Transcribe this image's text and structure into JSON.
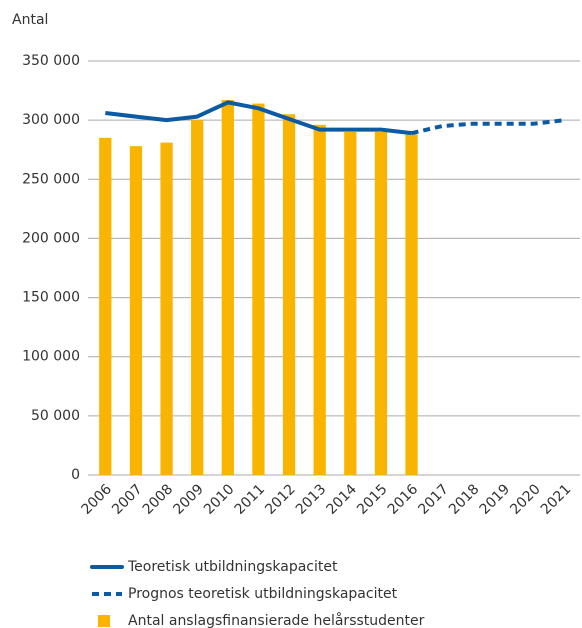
{
  "chart_data": {
    "type": "bar",
    "y_label": "Antal",
    "categories": [
      "2006",
      "2007",
      "2008",
      "2009",
      "2010",
      "2011",
      "2012",
      "2013",
      "2014",
      "2015",
      "2016",
      "2017",
      "2018",
      "2019",
      "2020",
      "2021"
    ],
    "series": [
      {
        "name": "Teoretisk utbildningskapacitet",
        "type": "line",
        "dashed": false,
        "color": "#0b5aa2",
        "values": [
          306000,
          303000,
          300000,
          303000,
          315000,
          310000,
          301000,
          292000,
          292000,
          292000,
          289000,
          null,
          null,
          null,
          null,
          null
        ]
      },
      {
        "name": "Prognos teoretisk utbildningskapacitet",
        "type": "line",
        "dashed": true,
        "color": "#0b5aa2",
        "values": [
          null,
          null,
          null,
          null,
          null,
          null,
          null,
          null,
          null,
          null,
          289000,
          295000,
          297000,
          297000,
          297000,
          300000
        ]
      },
      {
        "name": "Antal anslagsfinansierade helårsstudenter",
        "type": "bar",
        "color": "#f8b400",
        "values": [
          285000,
          278000,
          281000,
          300000,
          317000,
          314000,
          305000,
          296000,
          290000,
          290000,
          288000,
          null,
          null,
          null,
          null,
          null
        ]
      }
    ],
    "ylim": [
      0,
      350000
    ],
    "yticks": [
      0,
      {
        "value": 50000,
        "label": "50 000"
      },
      {
        "value": 100000,
        "label": "100 000"
      },
      {
        "value": 150000,
        "label": "150 000"
      },
      {
        "value": 200000,
        "label": "200 000"
      },
      {
        "value": 250000,
        "label": "250 000"
      },
      {
        "value": 300000,
        "label": "300 000"
      },
      {
        "value": 350000,
        "label": "350 000"
      }
    ],
    "grid": true,
    "legend": "bottom"
  }
}
